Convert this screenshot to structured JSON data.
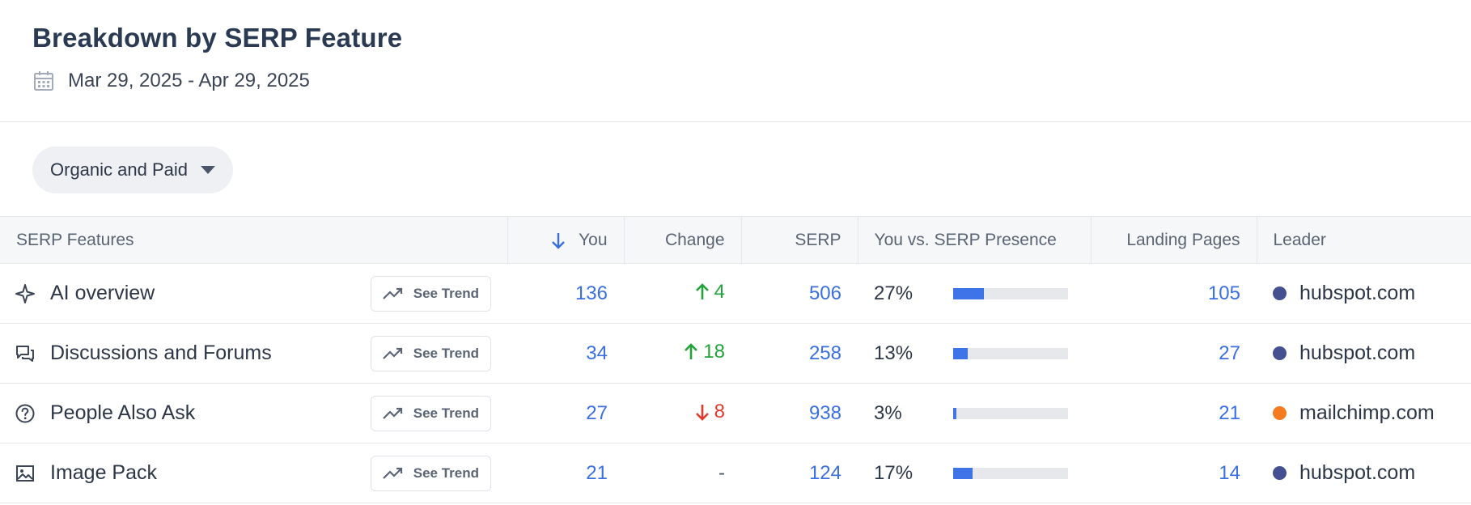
{
  "header": {
    "title": "Breakdown by SERP Feature",
    "date_range": "Mar 29, 2025 - Apr 29, 2025"
  },
  "filter": {
    "label": "Organic and Paid"
  },
  "table": {
    "columns": {
      "features": "SERP Features",
      "you": "You",
      "change": "Change",
      "serp": "SERP",
      "presence": "You vs. SERP Presence",
      "landing": "Landing Pages",
      "leader": "Leader"
    },
    "trend_label": "See Trend",
    "rows": [
      {
        "feature": "AI overview",
        "icon": "sparkle-icon",
        "you": "136",
        "change": "4",
        "change_dir": "up",
        "serp": "506",
        "presence": "27%",
        "presence_value": 0.27,
        "landing": "105",
        "leader": "hubspot.com",
        "leader_color": "#44508f"
      },
      {
        "feature": "Discussions and Forums",
        "icon": "chat-bubbles-icon",
        "you": "34",
        "change": "18",
        "change_dir": "up",
        "serp": "258",
        "presence": "13%",
        "presence_value": 0.13,
        "landing": "27",
        "leader": "hubspot.com",
        "leader_color": "#44508f"
      },
      {
        "feature": "People Also Ask",
        "icon": "question-circle-icon",
        "you": "27",
        "change": "8",
        "change_dir": "down",
        "serp": "938",
        "presence": "3%",
        "presence_value": 0.03,
        "landing": "21",
        "leader": "mailchimp.com",
        "leader_color": "#f47b20"
      },
      {
        "feature": "Image Pack",
        "icon": "image-icon",
        "you": "21",
        "change": "-",
        "change_dir": "none",
        "serp": "124",
        "presence": "17%",
        "presence_value": 0.17,
        "landing": "14",
        "leader": "hubspot.com",
        "leader_color": "#44508f"
      }
    ]
  },
  "colors": {
    "accent": "#3a6fe0",
    "up": "#22a33a",
    "down": "#e03a2e",
    "bar_fill": "#3f74e8"
  }
}
